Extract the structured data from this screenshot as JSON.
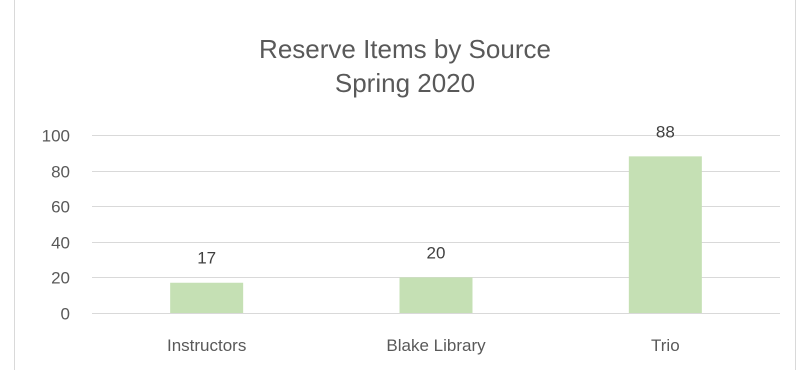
{
  "chart_data": {
    "type": "bar",
    "title_line1": "Reserve Items by Source",
    "title_line2": "Spring 2020",
    "categories": [
      "Instructors",
      "Blake Library",
      "Trio"
    ],
    "values": [
      17,
      20,
      88
    ],
    "data_labels": [
      "17",
      "20",
      "88"
    ],
    "ylim": [
      0,
      100
    ],
    "yticks": [
      0,
      20,
      40,
      60,
      80,
      100
    ],
    "grid": true,
    "legend": "none",
    "xlabel": "",
    "ylabel": ""
  },
  "colors": {
    "bar": "#c5e0b4",
    "gridline": "#d9d9d9",
    "text": "#595959"
  }
}
